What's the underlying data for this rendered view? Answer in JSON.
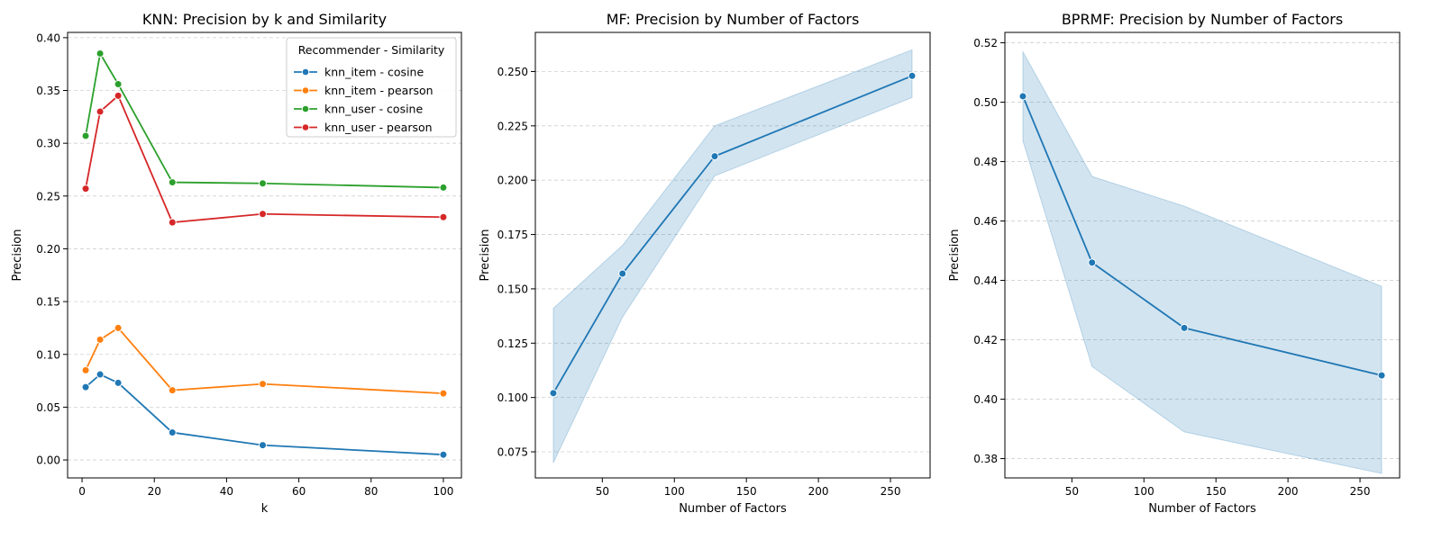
{
  "chart_data": [
    {
      "type": "line",
      "title": "KNN: Precision by k and Similarity",
      "xlabel": "k",
      "ylabel": "Precision",
      "x": [
        1,
        5,
        10,
        25,
        50,
        100
      ],
      "xlim": [
        -4,
        105
      ],
      "ylim": [
        -0.017,
        0.405
      ],
      "xticks": [
        0,
        20,
        40,
        60,
        80,
        100
      ],
      "yticks": [
        0.0,
        0.05,
        0.1,
        0.15,
        0.2,
        0.25,
        0.3,
        0.35,
        0.4
      ],
      "ytick_labels": [
        "0.00",
        "0.05",
        "0.10",
        "0.15",
        "0.20",
        "0.25",
        "0.30",
        "0.35",
        "0.40"
      ],
      "grid": "y",
      "legend": {
        "title": "Recommender - Similarity",
        "placement": "top-right"
      },
      "series": [
        {
          "name": "knn_item - cosine",
          "color": "#1f77b4",
          "values": [
            0.069,
            0.081,
            0.073,
            0.026,
            0.014,
            0.005
          ]
        },
        {
          "name": "knn_item - pearson",
          "color": "#ff7f0e",
          "values": [
            0.085,
            0.114,
            0.125,
            0.066,
            0.072,
            0.063
          ]
        },
        {
          "name": "knn_user - cosine",
          "color": "#2ca02c",
          "values": [
            0.307,
            0.385,
            0.356,
            0.263,
            0.262,
            0.258
          ]
        },
        {
          "name": "knn_user - pearson",
          "color": "#d62728",
          "values": [
            0.257,
            0.33,
            0.345,
            0.225,
            0.233,
            0.23
          ]
        }
      ]
    },
    {
      "type": "line",
      "title": "MF: Precision by Number of Factors",
      "xlabel": "Number of Factors",
      "ylabel": "Precision",
      "x": [
        16,
        64,
        128,
        265
      ],
      "xlim": [
        3.5,
        277.5
      ],
      "ylim": [
        0.063,
        0.268
      ],
      "xticks": [
        50,
        100,
        150,
        200,
        250
      ],
      "yticks": [
        0.075,
        0.1,
        0.125,
        0.15,
        0.175,
        0.2,
        0.225,
        0.25
      ],
      "ytick_labels": [
        "0.075",
        "0.100",
        "0.125",
        "0.150",
        "0.175",
        "0.200",
        "0.225",
        "0.250"
      ],
      "grid": "y",
      "series": [
        {
          "color": "#1f77b4",
          "values": [
            0.102,
            0.157,
            0.211,
            0.248
          ],
          "ci_lower": [
            0.07,
            0.137,
            0.202,
            0.238
          ],
          "ci_upper": [
            0.141,
            0.17,
            0.225,
            0.26
          ]
        }
      ]
    },
    {
      "type": "line",
      "title": "BPRMF: Precision by Number of Factors",
      "xlabel": "Number of Factors",
      "ylabel": "Precision",
      "x": [
        16,
        64,
        128,
        265
      ],
      "xlim": [
        3.5,
        277.5
      ],
      "ylim": [
        0.3735,
        0.5235
      ],
      "xticks": [
        50,
        100,
        150,
        200,
        250
      ],
      "yticks": [
        0.38,
        0.4,
        0.42,
        0.44,
        0.46,
        0.48,
        0.5,
        0.52
      ],
      "ytick_labels": [
        "0.38",
        "0.40",
        "0.42",
        "0.44",
        "0.46",
        "0.48",
        "0.50",
        "0.52"
      ],
      "grid": "y",
      "series": [
        {
          "color": "#1f77b4",
          "values": [
            0.502,
            0.446,
            0.424,
            0.408
          ],
          "ci_lower": [
            0.487,
            0.411,
            0.389,
            0.375
          ],
          "ci_upper": [
            0.517,
            0.475,
            0.465,
            0.438
          ]
        }
      ]
    }
  ]
}
